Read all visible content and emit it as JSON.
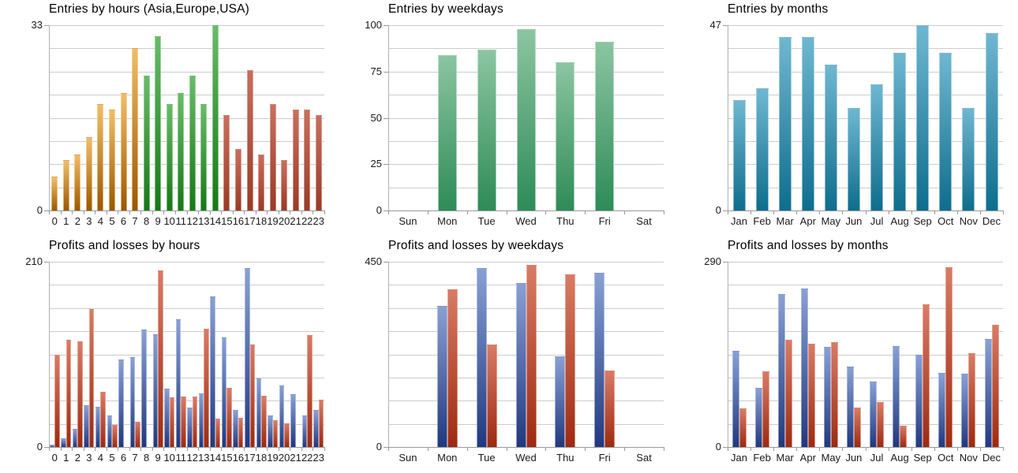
{
  "page": {
    "background": "#FFFFFF"
  },
  "palettes": {
    "orange": {
      "top": "#F2BD68",
      "bottom": "#9C5700",
      "edge": "rgba(255,233,190,0.55)"
    },
    "green_hours": {
      "top": "#68BC68",
      "bottom": "#157815",
      "edge": "rgba(215,240,215,0.50)"
    },
    "red_hours": {
      "top": "#CA6E5C",
      "bottom": "#9A3A26",
      "edge": "rgba(242,214,205,0.50)"
    },
    "green_week": {
      "top": "#8BC5A1",
      "bottom": "#2E8B57",
      "edge": "rgba(228,246,234,0.60)"
    },
    "teal": {
      "top": "#6FB7D1",
      "bottom": "#0E6D8D",
      "edge": "rgba(222,242,248,0.55)"
    },
    "blue": {
      "top": "#89A0D4",
      "bottom": "#21387E",
      "edge": "rgba(205,217,245,0.60)"
    },
    "red_pl": {
      "top": "#D87B66",
      "bottom": "#9D2A10",
      "edge": "rgba(246,200,185,0.60)"
    }
  },
  "axis_colors": {
    "gridline": "#CCCCCC",
    "axis_line": "#999999",
    "label_text": "#1A1A1A",
    "title_text": "#000000"
  },
  "chart_data": [
    {
      "id": "entries-by-hours",
      "type": "bar",
      "title": "Entries by hours (Asia,Europe,USA)",
      "xlabel": "",
      "ylabel": "",
      "ylim": [
        0,
        33
      ],
      "grid_intervals": 8,
      "grid": true,
      "legend": "none",
      "y_ticks": [
        {
          "value": 33,
          "label": "33"
        },
        {
          "value": 0,
          "label": "0"
        }
      ],
      "categories": [
        "0",
        "1",
        "2",
        "3",
        "4",
        "5",
        "6",
        "7",
        "8",
        "9",
        "10",
        "11",
        "12",
        "13",
        "14",
        "15",
        "16",
        "17",
        "18",
        "19",
        "20",
        "21",
        "22",
        "23"
      ],
      "series": [
        {
          "name": "entries",
          "values": [
            6,
            9,
            10,
            13,
            19,
            18,
            21,
            29,
            24,
            31,
            19,
            21,
            24,
            19,
            33,
            17,
            11,
            25,
            10,
            19,
            9,
            18,
            18,
            17
          ],
          "palette_per_bar": [
            "orange",
            "orange",
            "orange",
            "orange",
            "orange",
            "orange",
            "orange",
            "orange",
            "green_hours",
            "green_hours",
            "green_hours",
            "green_hours",
            "green_hours",
            "green_hours",
            "green_hours",
            "red_hours",
            "red_hours",
            "red_hours",
            "red_hours",
            "red_hours",
            "red_hours",
            "red_hours",
            "red_hours",
            "red_hours"
          ]
        }
      ]
    },
    {
      "id": "entries-by-weekdays",
      "type": "bar",
      "title": "Entries by weekdays",
      "xlabel": "",
      "ylabel": "",
      "ylim": [
        0,
        100
      ],
      "grid_intervals": 8,
      "grid": true,
      "legend": "none",
      "y_ticks": [
        {
          "value": 100,
          "label": "100"
        },
        {
          "value": 75,
          "label": "75"
        },
        {
          "value": 50,
          "label": "50"
        },
        {
          "value": 25,
          "label": "25"
        },
        {
          "value": 0,
          "label": "0"
        }
      ],
      "categories": [
        "Sun",
        "Mon",
        "Tue",
        "Wed",
        "Thu",
        "Fri",
        "Sat"
      ],
      "series": [
        {
          "name": "entries",
          "palette": "green_week",
          "values": [
            0,
            84,
            87,
            98,
            80,
            91,
            0
          ]
        }
      ]
    },
    {
      "id": "entries-by-months",
      "type": "bar",
      "title": "Entries by months",
      "xlabel": "",
      "ylabel": "",
      "ylim": [
        0,
        47
      ],
      "grid_intervals": 8,
      "grid": true,
      "legend": "none",
      "y_ticks": [
        {
          "value": 47,
          "label": "47"
        },
        {
          "value": 0,
          "label": "0"
        }
      ],
      "categories": [
        "Jan",
        "Feb",
        "Mar",
        "Apr",
        "May",
        "Jun",
        "Jul",
        "Aug",
        "Sep",
        "Oct",
        "Nov",
        "Dec"
      ],
      "series": [
        {
          "name": "entries",
          "palette": "teal",
          "values": [
            28,
            31,
            44,
            44,
            37,
            26,
            32,
            40,
            47,
            40,
            26,
            45
          ]
        }
      ]
    },
    {
      "id": "profits-losses-by-hours",
      "type": "grouped-bar",
      "title": "Profits and losses by hours",
      "xlabel": "",
      "ylabel": "",
      "ylim": [
        0,
        210
      ],
      "grid_intervals": 8,
      "grid": true,
      "legend": "none",
      "y_ticks": [
        {
          "value": 210,
          "label": "210"
        },
        {
          "value": 0,
          "label": "0"
        }
      ],
      "categories": [
        "0",
        "1",
        "2",
        "3",
        "4",
        "5",
        "6",
        "7",
        "8",
        "9",
        "10",
        "11",
        "12",
        "13",
        "14",
        "15",
        "16",
        "17",
        "18",
        "19",
        "20",
        "21",
        "22",
        "23"
      ],
      "series": [
        {
          "name": "profit",
          "palette": "blue",
          "values": [
            3,
            10,
            21,
            47,
            46,
            36,
            99,
            102,
            133,
            128,
            66,
            145,
            45,
            61,
            171,
            124,
            42,
            203,
            78,
            36,
            70,
            60,
            36,
            42
          ]
        },
        {
          "name": "loss",
          "palette": "red_pl",
          "values": [
            105,
            122,
            120,
            156,
            63,
            25,
            0,
            29,
            0,
            200,
            56,
            57,
            57,
            134,
            32,
            67,
            33,
            116,
            58,
            30,
            27,
            0,
            127,
            54
          ]
        }
      ]
    },
    {
      "id": "profits-losses-by-weekdays",
      "type": "grouped-bar",
      "title": "Profits and losses by weekdays",
      "xlabel": "",
      "ylabel": "",
      "ylim": [
        0,
        450
      ],
      "grid_intervals": 8,
      "grid": true,
      "legend": "none",
      "y_ticks": [
        {
          "value": 450,
          "label": "450"
        },
        {
          "value": 0,
          "label": "0"
        }
      ],
      "categories": [
        "Sun",
        "Mon",
        "Tue",
        "Wed",
        "Thu",
        "Fri",
        "Sat"
      ],
      "series": [
        {
          "name": "profit",
          "palette": "blue",
          "values": [
            0,
            343,
            435,
            398,
            221,
            423,
            0
          ]
        },
        {
          "name": "loss",
          "palette": "red_pl",
          "values": [
            0,
            383,
            249,
            442,
            420,
            185,
            0
          ]
        }
      ]
    },
    {
      "id": "profits-losses-by-months",
      "type": "grouped-bar",
      "title": "Profits and losses by months",
      "xlabel": "",
      "ylabel": "",
      "ylim": [
        0,
        290
      ],
      "grid_intervals": 8,
      "grid": true,
      "legend": "none",
      "y_ticks": [
        {
          "value": 290,
          "label": "290"
        },
        {
          "value": 0,
          "label": "0"
        }
      ],
      "categories": [
        "Jan",
        "Feb",
        "Mar",
        "Apr",
        "May",
        "Jun",
        "Jul",
        "Aug",
        "Sep",
        "Oct",
        "Nov",
        "Dec"
      ],
      "series": [
        {
          "name": "profit",
          "palette": "blue",
          "values": [
            150,
            92,
            240,
            248,
            157,
            126,
            102,
            158,
            144,
            116,
            115,
            169
          ]
        },
        {
          "name": "loss",
          "palette": "red_pl",
          "values": [
            60,
            119,
            168,
            162,
            164,
            62,
            71,
            33,
            223,
            281,
            147,
            191
          ]
        }
      ]
    }
  ]
}
